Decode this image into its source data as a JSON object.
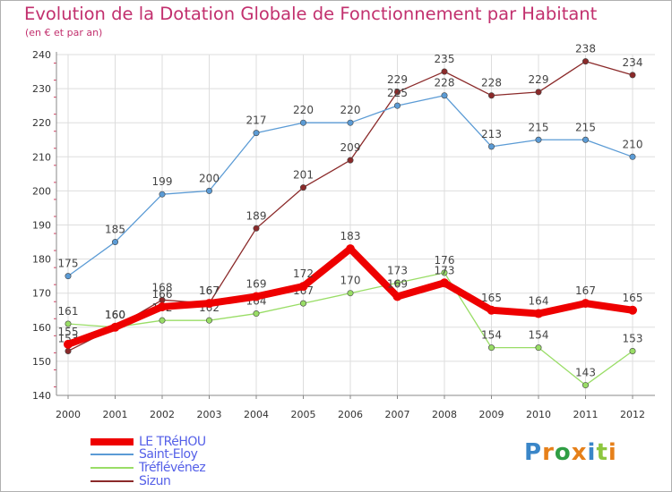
{
  "chart_data": {
    "type": "line",
    "title": "Evolution de la Dotation Globale de Fonctionnement par Habitant",
    "subtitle": "(en € et par an)",
    "xlabel": "",
    "ylabel": "",
    "categories": [
      "2000",
      "2001",
      "2002",
      "2003",
      "2004",
      "2005",
      "2006",
      "2007",
      "2008",
      "2009",
      "2010",
      "2011",
      "2012"
    ],
    "ylim": [
      140,
      240
    ],
    "yticks": [
      140,
      150,
      160,
      170,
      180,
      190,
      200,
      210,
      220,
      230,
      240
    ],
    "grid": true,
    "legend_position": "bottom-left",
    "series": [
      {
        "name": "LE TRéHOU",
        "color": "#ee0000",
        "values": [
          155,
          160,
          166,
          167,
          169,
          172,
          183,
          169,
          173,
          165,
          164,
          167,
          165
        ]
      },
      {
        "name": "Saint-Eloy",
        "color": "#5b9bd5",
        "values": [
          175,
          185,
          199,
          200,
          217,
          220,
          220,
          225,
          228,
          213,
          215,
          215,
          210
        ]
      },
      {
        "name": "Tréflévénez",
        "color": "#99dd66",
        "values": [
          161,
          160,
          162,
          162,
          164,
          167,
          170,
          173,
          176,
          154,
          154,
          143,
          153
        ]
      },
      {
        "name": "Sizun",
        "color": "#8b2a2a",
        "values": [
          153,
          160,
          168,
          167,
          189,
          201,
          209,
          229,
          235,
          228,
          229,
          238,
          234
        ]
      }
    ]
  },
  "brand": {
    "letters": [
      "P",
      "r",
      "o",
      "x",
      "i",
      "t",
      "i"
    ],
    "colors": [
      "#3a86c8",
      "#e6801a",
      "#2f9e44",
      "#e6801a",
      "#3a86c8",
      "#8dc63f",
      "#e6801a"
    ]
  }
}
